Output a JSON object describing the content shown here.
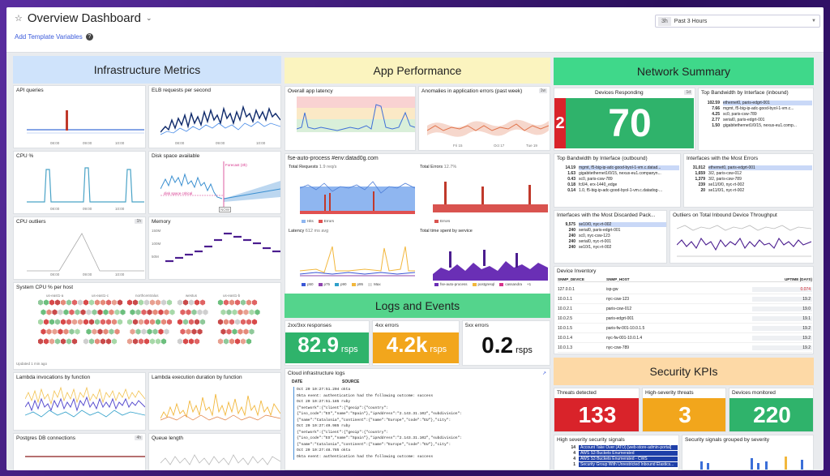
{
  "header": {
    "title": "Overview Dashboard",
    "template_vars": "Add Template Variables",
    "time_pill": "3h",
    "time_label": "Past 3 Hours"
  },
  "infra": {
    "title": "Infrastructure Metrics",
    "api": "API queries",
    "elb": "ELB requests per second",
    "cpu": "CPU %",
    "disk": "Disk space available",
    "disk_forecast": "Forecast (3h)",
    "disk_critical": "disk space critical",
    "disk_now": "NOW",
    "cpu_out": "CPU outliers",
    "cpu_out_badge": "1h",
    "memory": "Memory",
    "mem_ticks": [
      "150M",
      "100M",
      "50M"
    ],
    "sys": "System CPU % per host",
    "sys_groups": [
      "us-east1-a",
      "us-east1-c",
      "northcentralus",
      "westus",
      "us-east1-b"
    ],
    "sys_updated": "Updated 1 min ago",
    "lambda_inv": "Lambda invocations by function",
    "lambda_dur": "Lambda execution duration by function",
    "pg": "Postgres DB connections",
    "pg_badge": "4h",
    "queue": "Queue length",
    "ticks": [
      "08:00",
      "09:00",
      "10:00"
    ],
    "ticks2": [
      "08:00",
      "09:00",
      "10:00",
      "11:00"
    ]
  },
  "app": {
    "title": "App Performance",
    "latency": "Overall app latency",
    "anom": "Anomalies in application errors (past week)",
    "anom_badge": "1w",
    "anom_ticks": [
      "Fri 15",
      "Oct 17",
      "Tue 19"
    ],
    "fse": "fse-auto-process #env:datad0g.com",
    "total_req": "Total Requests",
    "total_req_v": "1.9 req/s",
    "total_err": "Total Errors",
    "total_err_v": "12.7%",
    "hits": "Hits",
    "errors": "Errors",
    "lat": "Latency",
    "lat_v": "612 ms avg",
    "time_svc": "Total time spent by service",
    "lat_legend": [
      "p50",
      "p75",
      "p90",
      "p95",
      "Max"
    ],
    "svc_legend": [
      "fse-auto-process",
      "postgresql",
      "cassandra",
      "+1"
    ]
  },
  "logs": {
    "title": "Logs and Events",
    "s2xx": "2xx/3xx responses",
    "s2xx_v": "82.9",
    "s4xx": "4xx errors",
    "s4xx_v": "4.2k",
    "s5xx": "5xx errors",
    "s5xx_v": "0.2",
    "unit": "rsps",
    "cloud": "Cloud infrastructure logs",
    "col_date": "DATE",
    "col_source": "SOURCE",
    "lines": [
      "Oct 20 10:27:51.204  okta",
      "Okta event: authentication had the following outcome: success",
      "Oct 20 10:27:51.185  ruby",
      "{\"network\":{\"client\":{\"geoip\":{\"country\":",
      "{\"iso_code\":\"ES\",\"name\":\"Spain\"},\"ipAddress\":\"2.143.31.102\",\"subdivision\":",
      "{\"name\":\"Catalonia\",\"continent\":{\"name\":\"Europe\",\"code\":\"EU\"},\"city\":",
      "Oct 20 10:27:49.985  ruby",
      "{\"network\":{\"client\":{\"geoip\":{\"country\":",
      "{\"iso_code\":\"ES\",\"name\":\"Spain\"},\"ipAddress\":\"2.143.31.102\",\"subdivision\":",
      "{\"name\":\"Catalonia\",\"continent\":{\"name\":\"Europe\",\"code\":\"EU\"},\"city\":",
      "Oct 20 10:27:48.785  okta",
      "Okta event: authentication had the following outcome: success"
    ]
  },
  "net": {
    "title": "Network Summary",
    "dev": "Devices Responding",
    "dev_badge": "1d",
    "dev_v": "70",
    "dev_red": "2",
    "top_in": "Top Bandwidth by Interface (inbound)",
    "top_in_rows": [
      [
        "102.59",
        "ethernet0, paris-edgrt-001"
      ],
      [
        "7.66",
        "mgmt, f5-big-ip-adc-good-byol-1-vm.c..."
      ],
      [
        "4.25",
        "sc0, paris-csw-789"
      ],
      [
        "2.77",
        "serial0, paris-edgrt-001"
      ],
      [
        "1.50",
        "gigabitethernet1/0/15, nexus-eu1.comp..."
      ]
    ],
    "top_out": "Top Bandwidth by Interface (outbound)",
    "top_out_rows": [
      [
        "14.19",
        "mgmt, f5-big-ip-adc-good-byol-1-vm.c.datad..."
      ],
      [
        "1.63",
        "gigabitethernet1/0/15, nexus-eu1.companyn..."
      ],
      [
        "0.43",
        "sc0, paris-csw-789"
      ],
      [
        "0.18",
        "fc6/4, erx-1440_edge"
      ],
      [
        "0.14",
        "1.0, f5-big-ip-adc-good-byol-1-vm.c.datadog-..."
      ]
    ],
    "most_err": "Interfaces with the Most Errors",
    "most_err_rows": [
      [
        "31,012",
        "ethernet0, paris-edgrt-001"
      ],
      [
        "1,659",
        "3/2, paris-csw-012"
      ],
      [
        "1,379",
        "3/2, paris-csw-789"
      ],
      [
        "239",
        "se11/0/0, nyc-rt-002"
      ],
      [
        "20",
        "se11/0/1, nyc-rt-002"
      ]
    ],
    "discard": "Interfaces with the Most Discarded Pack...",
    "discard_rows": [
      [
        "9,575",
        "se10/0, nyc-rt-002"
      ],
      [
        "240",
        "serial0, paris-edgrt-001"
      ],
      [
        "240",
        "sc0, nyc-csw-123"
      ],
      [
        "240",
        "serial0, nyc-rt-001"
      ],
      [
        "240",
        "se10/1, nyc-rt-002"
      ]
    ],
    "outliers": "Outliers on Total Inbound Device Throughput",
    "inv": "Device Inventory",
    "inv_cols": [
      "SNMP_DEVICE",
      "SNMP_HOST",
      "UPTIME (DAYS)"
    ],
    "inv_rows": [
      [
        "127.0.0.1",
        "isp-gw",
        "0.074"
      ],
      [
        "10.0.1.1",
        "nyc-csw-123",
        "19.2"
      ],
      [
        "10.0.2.1",
        "paris-csw-012",
        "19.0"
      ],
      [
        "10.0.2.5",
        "paris-edgrt-001",
        "19.1"
      ],
      [
        "10.0.1.5",
        "paris-fw-001-10.0.1.5",
        "19.2"
      ],
      [
        "10.0.1.4",
        "nyc-fw-001-10.0.1.4",
        "19.2"
      ],
      [
        "10.0.1.3",
        "nyc-csw-789",
        "19.2"
      ]
    ]
  },
  "sec": {
    "title": "Security KPIs",
    "threats": "Threats detected",
    "threats_v": "133",
    "high": "High-severity threats",
    "high_v": "3",
    "mon": "Devices monitored",
    "mon_v": "220",
    "signals": "High severity security signals",
    "sig_rows": [
      [
        "14",
        "Account Take Over (ATO) [web-store-admin-portal]"
      ],
      [
        "4",
        "AWS S3 Buckets Enumerated"
      ],
      [
        "4",
        "AWS S3 Buckets Enumerated - CWS"
      ],
      [
        "1",
        "Security Group With Unrestricted Inbound Elastics..."
      ]
    ],
    "by_sev": "Security signals grouped by severity"
  }
}
